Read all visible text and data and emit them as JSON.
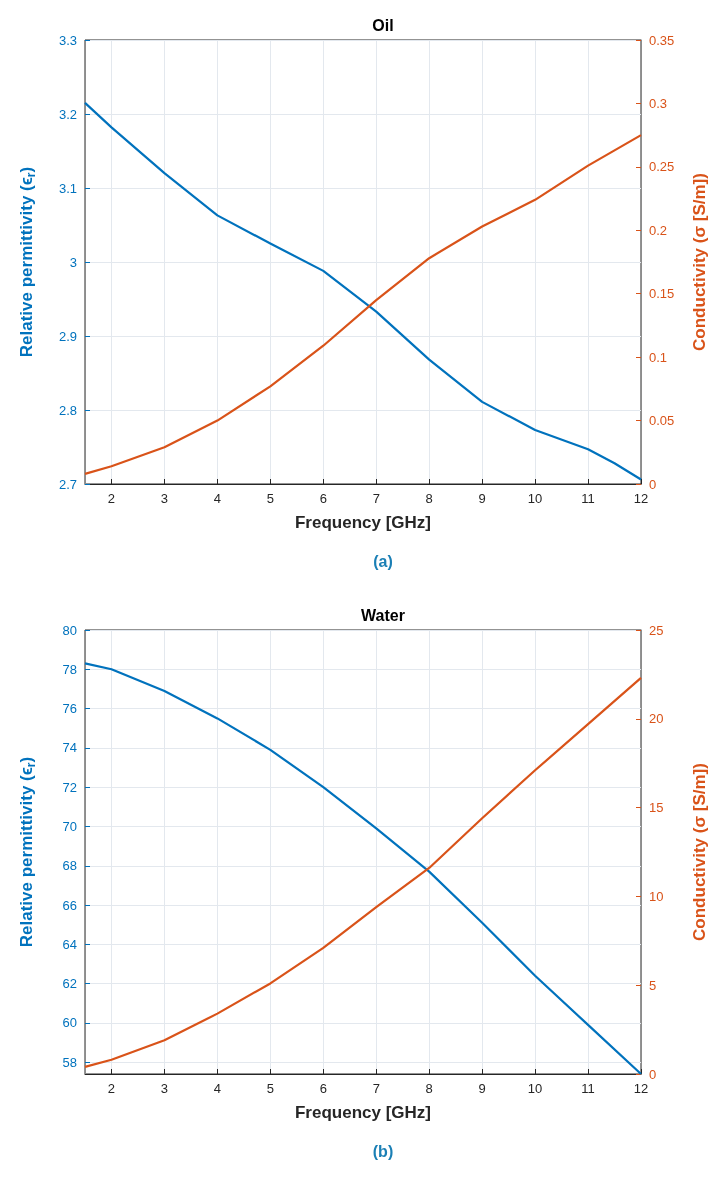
{
  "chart_data": [
    {
      "type": "line",
      "title": "Oil",
      "xlabel": "Frequency [GHz]",
      "ylabel": "Relative permittivity (ϵ$_{r}$)",
      "y2label": "Conductivity (σ [S/m])",
      "annotations": [
        "(a)"
      ],
      "x": [
        1.5,
        2,
        3,
        4,
        5,
        6,
        7,
        8,
        9,
        10,
        11,
        11.5,
        12
      ],
      "series": [
        {
          "color": "#0072bd",
          "values": [
            3.215,
            3.182,
            3.12,
            3.063,
            3.025,
            2.988,
            2.933,
            2.868,
            2.811,
            2.773,
            2.747,
            2.728,
            2.706
          ]
        },
        {
          "color": "#d95319",
          "axis": "y2",
          "values": [
            0.008,
            0.014,
            0.029,
            0.05,
            0.077,
            0.109,
            0.145,
            0.178,
            0.203,
            0.224,
            0.251,
            0.263,
            0.275
          ]
        }
      ],
      "xlim": [
        1.5,
        12
      ],
      "xticks": [
        2,
        3,
        4,
        5,
        6,
        7,
        8,
        9,
        10,
        11,
        12
      ],
      "ylim": [
        2.7,
        3.3
      ],
      "yticks": [
        2.7,
        2.8,
        2.9,
        3,
        3.1,
        3.2,
        3.3
      ],
      "y2lim": [
        0,
        0.35
      ],
      "y2ticks": [
        0,
        0.05,
        0.1,
        0.15,
        0.2,
        0.25,
        0.3,
        0.35
      ],
      "grid": true,
      "marker": "none",
      "line_style": "solid"
    },
    {
      "type": "line",
      "title": "Water",
      "xlabel": "Frequency [GHz]",
      "ylabel": "Relative permittivity (ϵ$_{r}$)",
      "y2label": "Conductivity (σ [S/m])",
      "annotations": [
        "(b)"
      ],
      "x": [
        1.5,
        2,
        3,
        4,
        5,
        6,
        7,
        8,
        9,
        10,
        11,
        12
      ],
      "series": [
        {
          "color": "#0072bd",
          "values": [
            78.3,
            78.0,
            76.9,
            75.5,
            73.9,
            72.0,
            69.9,
            67.7,
            65.1,
            62.4,
            59.9,
            57.4
          ]
        },
        {
          "color": "#d95319",
          "axis": "y2",
          "values": [
            0.4,
            0.8,
            1.9,
            3.4,
            5.1,
            7.1,
            9.4,
            11.6,
            14.4,
            17.1,
            19.7,
            22.3
          ]
        }
      ],
      "xlim": [
        1.5,
        12
      ],
      "xticks": [
        2,
        3,
        4,
        5,
        6,
        7,
        8,
        9,
        10,
        11,
        12
      ],
      "ylim": [
        57.4,
        80
      ],
      "yticks": [
        58,
        60,
        62,
        64,
        66,
        68,
        70,
        72,
        74,
        76,
        78,
        80
      ],
      "y2lim": [
        0,
        25
      ],
      "y2ticks": [
        0,
        5,
        10,
        15,
        20,
        25
      ],
      "grid": true,
      "marker": "none",
      "line_style": "solid"
    }
  ]
}
